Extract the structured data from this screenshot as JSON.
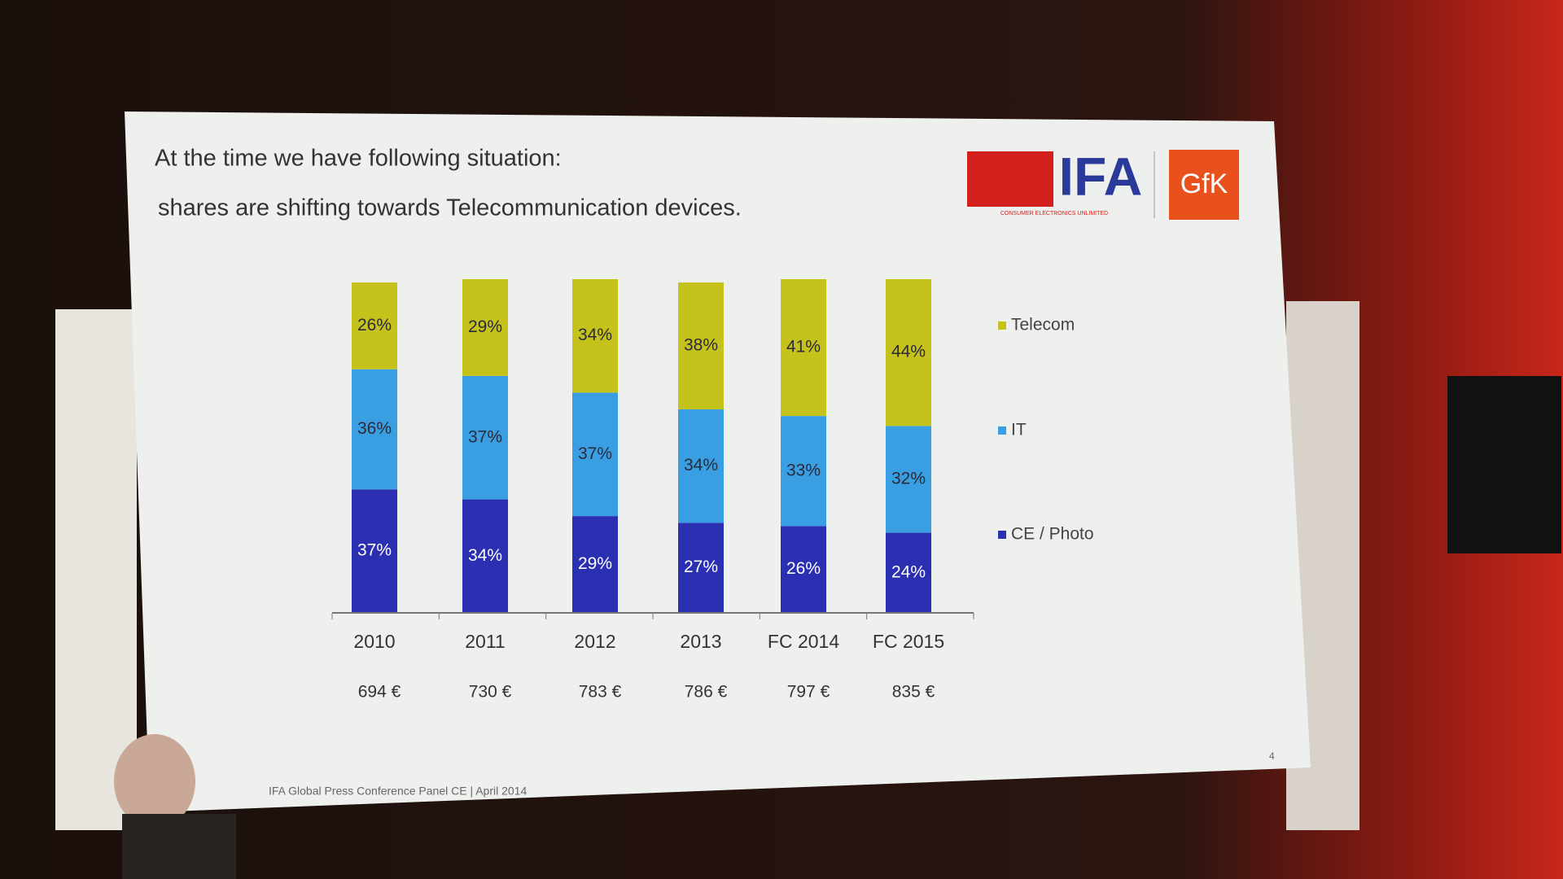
{
  "chart_data": {
    "type": "stacked_bar",
    "title": "At the time we have following situation:",
    "subtitle": "shares are shifting towards Telecommunication devices.",
    "categories": [
      "2010",
      "2011",
      "2012",
      "2013",
      "FC 2014",
      "FC 2015"
    ],
    "series": [
      {
        "name": "CE / Photo",
        "color": "#2b2fb2",
        "values": [
          37,
          34,
          29,
          27,
          26,
          24
        ],
        "value_labels": [
          "37%",
          "34%",
          "29%",
          "27%",
          "26%",
          "24%"
        ]
      },
      {
        "name": "IT",
        "color": "#3a9fe2",
        "values": [
          36,
          37,
          37,
          34,
          33,
          32
        ],
        "value_labels": [
          "36%",
          "37%",
          "37%",
          "34%",
          "33%",
          "32%"
        ]
      },
      {
        "name": "Telecom",
        "color": "#c6c21c",
        "values": [
          26,
          29,
          34,
          38,
          41,
          44
        ],
        "value_labels": [
          "26%",
          "29%",
          "34%",
          "38%",
          "41%",
          "44%"
        ]
      }
    ],
    "annotations": [
      "694 €",
      "730 €",
      "783 €",
      "786 €",
      "797 €",
      "835 €"
    ],
    "ylim": [
      0,
      100
    ],
    "legend": "right"
  },
  "logos": {
    "ifa": "IFA",
    "ifa_tagline": "CONSUMER ELECTRONICS UNLIMITED",
    "gfk": "GfK"
  },
  "footer": "IFA Global Press Conference Panel CE | April 2014",
  "page_number": "4"
}
